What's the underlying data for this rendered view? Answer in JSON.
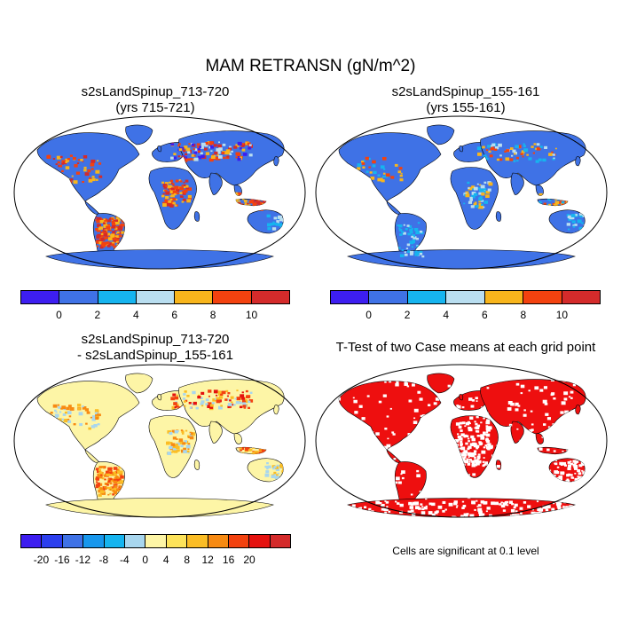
{
  "main_title": "MAM RETRANSN (gN/m^2)",
  "panels": [
    {
      "title_line1": "s2sLandSpinup_713-720",
      "title_line2": "(yrs 715-721)"
    },
    {
      "title_line1": "s2sLandSpinup_155-161",
      "title_line2": "(yrs 155-161)"
    },
    {
      "title_line1": "s2sLandSpinup_713-720",
      "title_line2": "- s2sLandSpinup_155-161"
    },
    {
      "title_line1": "T-Test of two Case means at each grid point"
    }
  ],
  "colorbar_abs": {
    "colors": [
      "#3d1ef0",
      "#3f72e6",
      "#16b4ef",
      "#b9def0",
      "#f8b51c",
      "#f3420f",
      "#d42b2b"
    ],
    "labels": [
      "0",
      "2",
      "4",
      "6",
      "8",
      "10"
    ]
  },
  "colorbar_diff": {
    "colors": [
      "#3d1ef0",
      "#2c3fee",
      "#3f72e6",
      "#1897ec",
      "#16b4ef",
      "#a8d6ee",
      "#fdf5a6",
      "#fde35a",
      "#fbbd25",
      "#f78a12",
      "#f3420f",
      "#e5120f",
      "#d42b2b"
    ],
    "labels": [
      "-20",
      "-16",
      "-12",
      "-8",
      "-4",
      "0",
      "4",
      "8",
      "12",
      "16",
      "20"
    ]
  },
  "map_colors": {
    "ocean": "#ffffff",
    "land_abs": "#3f72e6",
    "land_diff": "#fdf5a6",
    "ttest_sig": "#ee0f0f",
    "ttest_nonsig": "#ffffff",
    "outline": "#000000"
  },
  "significance_note": "Cells are significant at 0.1 level"
}
